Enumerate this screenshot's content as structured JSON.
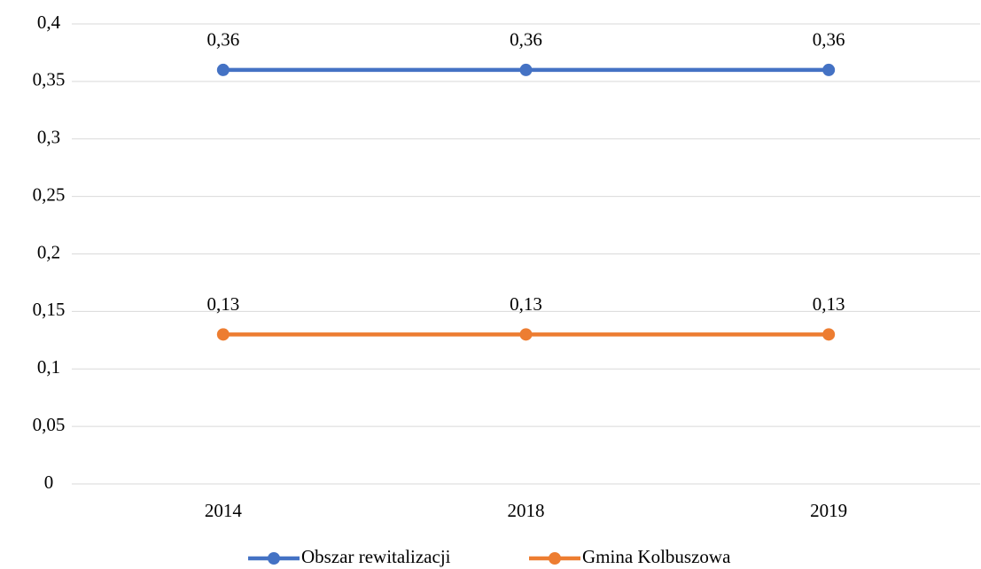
{
  "chart_data": {
    "type": "line",
    "categories": [
      "2014",
      "2018",
      "2019"
    ],
    "series": [
      {
        "name": "Obszar rewitalizacji",
        "color": "#4472c4",
        "values": [
          0.36,
          0.36,
          0.36
        ],
        "value_labels": [
          "0,36",
          "0,36",
          "0,36"
        ]
      },
      {
        "name": "Gmina Kolbuszowa",
        "color": "#ed7d31",
        "values": [
          0.13,
          0.13,
          0.13
        ],
        "value_labels": [
          "0,13",
          "0,13",
          "0,13"
        ]
      }
    ],
    "ylim": [
      0,
      0.4
    ],
    "yticks": [
      0,
      {
        "value": 0.05,
        "label": "0,05"
      },
      {
        "value": 0.1,
        "label": "0,1"
      },
      {
        "value": 0.15,
        "label": "0,15"
      },
      {
        "value": 0.2,
        "label": "0,2"
      },
      {
        "value": 0.25,
        "label": "0,25"
      },
      {
        "value": 0.3,
        "label": "0,3"
      },
      {
        "value": 0.35,
        "label": "0,35"
      },
      {
        "value": 0.4,
        "label": "0,4"
      }
    ],
    "grid": true,
    "legend": "bottom"
  }
}
